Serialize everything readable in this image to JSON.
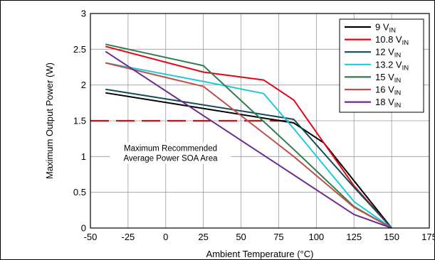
{
  "chart_data": {
    "type": "line",
    "xlabel": "Ambient Temperature (°C)",
    "ylabel": "Maximum Output Power (W)",
    "xlim": [
      -50,
      175
    ],
    "ylim": [
      0,
      3
    ],
    "xticks": [
      "-50",
      "-25",
      "0",
      "25",
      "50",
      "75",
      "100",
      "125",
      "150",
      "175"
    ],
    "yticks": [
      "0",
      "0.5",
      "1",
      "1.5",
      "2",
      "2.5",
      "3"
    ],
    "grid": true,
    "legend_position": "top-right",
    "series": [
      {
        "name": "9 V",
        "name_sub": "IN",
        "color": "#000000",
        "x": [
          -40,
          85,
          105,
          150
        ],
        "y": [
          1.89,
          1.47,
          1.19,
          0
        ]
      },
      {
        "name": "10.8 V",
        "name_sub": "IN",
        "color": "#e30613",
        "x": [
          -40,
          25,
          65,
          85,
          105,
          125,
          150
        ],
        "y": [
          2.54,
          2.18,
          2.07,
          1.79,
          1.19,
          0.59,
          0
        ]
      },
      {
        "name": "12 V",
        "name_sub": "IN",
        "color": "#0f4c5c",
        "x": [
          -40,
          85,
          125,
          150
        ],
        "y": [
          1.94,
          1.52,
          0.57,
          0
        ]
      },
      {
        "name": "13.2 V",
        "name_sub": "IN",
        "color": "#1ec8e0",
        "x": [
          -40,
          25,
          65,
          85,
          125,
          150
        ],
        "y": [
          2.31,
          2.05,
          1.88,
          1.39,
          0.37,
          0
        ]
      },
      {
        "name": "15 V",
        "name_sub": "IN",
        "color": "#2e7d4f",
        "x": [
          -40,
          25,
          85,
          125,
          150
        ],
        "y": [
          2.57,
          2.27,
          1.1,
          0.3,
          0
        ]
      },
      {
        "name": "16 V",
        "name_sub": "IN",
        "color": "#c0504d",
        "x": [
          -40,
          25,
          85,
          125,
          150
        ],
        "y": [
          2.31,
          1.98,
          1.0,
          0.29,
          0
        ]
      },
      {
        "name": "18 V",
        "name_sub": "IN",
        "color": "#6b2c91",
        "x": [
          -40,
          125,
          150
        ],
        "y": [
          2.47,
          0.19,
          0
        ]
      }
    ],
    "reference_line": {
      "y": 1.5,
      "color": "#e30613",
      "style": "dashed"
    },
    "annotation": {
      "lines": [
        "Maximum Recommended",
        "Average Power SOA Area"
      ],
      "x": -37,
      "y": 1.0
    }
  }
}
